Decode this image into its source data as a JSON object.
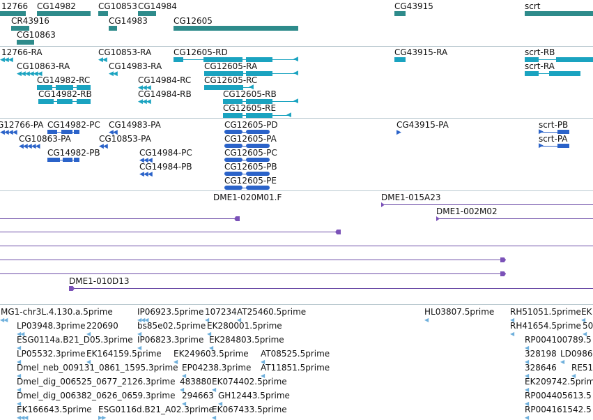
{
  "colors": {
    "gene": "#2e8b8b",
    "transcript_rna": "#1aa3c0",
    "transcript_protein": "#2b63c9",
    "clone": "#6a4aa6",
    "est": "#6fb0dc",
    "separator": "#b8c8cf"
  },
  "genes": [
    {
      "label": "12766"
    },
    {
      "label": "CG14982"
    },
    {
      "label": "CG10853"
    },
    {
      "label": "CG14984"
    },
    {
      "label": "CG43915"
    },
    {
      "label": "scrt"
    },
    {
      "label": "CR43916"
    },
    {
      "label": "CG14983"
    },
    {
      "label": "CG12605"
    },
    {
      "label": "CG10863"
    }
  ],
  "rna_transcripts": [
    {
      "label": "12766-RA"
    },
    {
      "label": "CG10853-RA"
    },
    {
      "label": "CG12605-RD"
    },
    {
      "label": "CG43915-RA"
    },
    {
      "label": "scrt-RB"
    },
    {
      "label": "CG10863-RA"
    },
    {
      "label": "CG14983-RA"
    },
    {
      "label": "CG12605-RA"
    },
    {
      "label": "scrt-RA"
    },
    {
      "label": "CG14982-RC"
    },
    {
      "label": "CG14984-RC"
    },
    {
      "label": "CG12605-RC"
    },
    {
      "label": "CG14982-RB"
    },
    {
      "label": "CG14984-RB"
    },
    {
      "label": "CG12605-RB"
    },
    {
      "label": "CG12605-RE"
    }
  ],
  "protein_transcripts": [
    {
      "label": "G12766-PA"
    },
    {
      "label": "CG14982-PC"
    },
    {
      "label": "CG14983-PA"
    },
    {
      "label": "CG12605-PD"
    },
    {
      "label": "CG43915-PA"
    },
    {
      "label": "scrt-PB"
    },
    {
      "label": "CG10863-PA"
    },
    {
      "label": "CG10853-PA"
    },
    {
      "label": "CG12605-PA"
    },
    {
      "label": "scrt-PA"
    },
    {
      "label": "CG14982-PB"
    },
    {
      "label": "CG14984-PC"
    },
    {
      "label": "CG12605-PC"
    },
    {
      "label": "CG14984-PB"
    },
    {
      "label": "CG12605-PB"
    },
    {
      "label": "CG12605-PE"
    }
  ],
  "clones": [
    {
      "label": "DME1-020M01.F"
    },
    {
      "label": "DME1-015A23"
    },
    {
      "label": "DME1-002M02"
    },
    {
      "label": "DME1-010D13"
    }
  ],
  "ests": [
    {
      "label": "MG1-chr3L.4.130.a.5prime"
    },
    {
      "label": "IP06923.5prime"
    },
    {
      "label": "107234"
    },
    {
      "label": "AT25460.5prime"
    },
    {
      "label": "HL03807.5prime"
    },
    {
      "label": "RH51051.5prime"
    },
    {
      "label": "EK"
    },
    {
      "label": "LP03948.3prime"
    },
    {
      "label": "220690"
    },
    {
      "label": "bs85e02.5prime"
    },
    {
      "label": "EK280001.5prime"
    },
    {
      "label": "RH41654.5prime"
    },
    {
      "label": "50"
    },
    {
      "label": "ESG0114a.B21_D05.3prime"
    },
    {
      "label": "IP06823.3prime"
    },
    {
      "label": "EK284803.5prime"
    },
    {
      "label": "RP004100789.5"
    },
    {
      "label": "LP05532.3prime"
    },
    {
      "label": "EK164159.5prime"
    },
    {
      "label": "EK249603.5prime"
    },
    {
      "label": "AT08525.5prime"
    },
    {
      "label": "328198"
    },
    {
      "label": "LD0986"
    },
    {
      "label": "Dmel_neb_009131_0861_1595.3prime"
    },
    {
      "label": "EP04238.3prime"
    },
    {
      "label": "AT11851.5prime"
    },
    {
      "label": "328646"
    },
    {
      "label": "RE51"
    },
    {
      "label": "Dmel_dig_006525_0677_2126.3prime"
    },
    {
      "label": "483880"
    },
    {
      "label": "EK074402.5prime"
    },
    {
      "label": "EK209742.5prime"
    },
    {
      "label": "Dmel_dig_006382_0626_0659.3prime"
    },
    {
      "label": "294663"
    },
    {
      "label": "GH12443.5prime"
    },
    {
      "label": "RP004405613.5"
    },
    {
      "label": "EK166643.5prime"
    },
    {
      "label": "ESG0116d.B21_A02.3prime"
    },
    {
      "label": "EK067433.5prime"
    },
    {
      "label": "RP004161542.5"
    }
  ]
}
